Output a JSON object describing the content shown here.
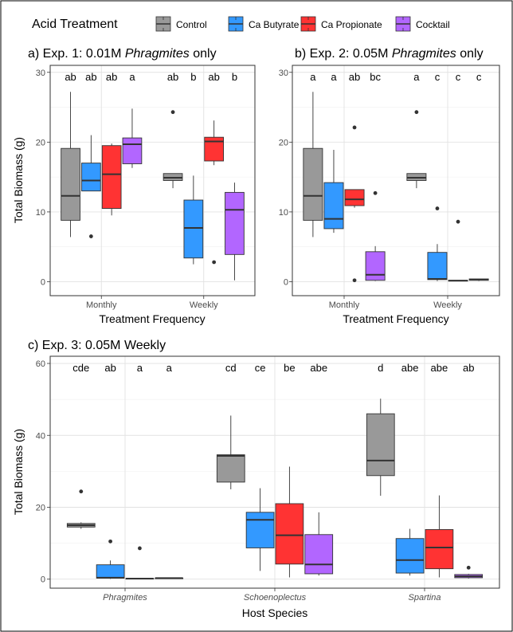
{
  "legend": {
    "title": "Acid Treatment",
    "entries": [
      {
        "name": "Control",
        "color": "#999999"
      },
      {
        "name": "Ca Butyrate",
        "color": "#3399FF"
      },
      {
        "name": "Ca Propionate",
        "color": "#FF3333"
      },
      {
        "name": "Cocktail",
        "color": "#B266FF"
      }
    ]
  },
  "chart_data": [
    {
      "type": "box",
      "title_prefix": "a) Exp. 1: 0.01M ",
      "title_italic": "Phragmites",
      "title_suffix": " only",
      "xlabel": "Treatment Frequency",
      "ylabel": "Total Biomass (g)",
      "ylim": [
        -2,
        31
      ],
      "yticks": [
        0,
        10,
        20,
        30
      ],
      "categories": [
        "Monthly",
        "Weekly"
      ],
      "series_order": [
        "Control",
        "Ca Butyrate",
        "Ca Propionate",
        "Cocktail"
      ],
      "letters": [
        [
          "ab",
          "ab",
          "ab",
          "a"
        ],
        [
          "ab",
          "b",
          "ab",
          "b"
        ]
      ],
      "boxes": [
        [
          {
            "min": 6.4,
            "q1": 8.8,
            "median": 12.3,
            "q3": 19.1,
            "max": 27.2,
            "outliers": []
          },
          {
            "min": 13.0,
            "q1": 13.0,
            "median": 14.5,
            "q3": 17.0,
            "max": 21.0,
            "outliers": [
              6.5
            ]
          },
          {
            "min": 9.5,
            "q1": 10.5,
            "median": 15.4,
            "q3": 19.5,
            "max": 19.8,
            "outliers": []
          },
          {
            "min": 16.3,
            "q1": 16.9,
            "median": 19.7,
            "q3": 20.6,
            "max": 24.8,
            "outliers": []
          }
        ],
        [
          {
            "min": 13.4,
            "q1": 14.5,
            "median": 14.9,
            "q3": 15.5,
            "max": 15.5,
            "outliers": [
              24.3
            ]
          },
          {
            "min": 2.5,
            "q1": 3.4,
            "median": 7.7,
            "q3": 11.7,
            "max": 15.2,
            "outliers": []
          },
          {
            "min": 16.7,
            "q1": 17.3,
            "median": 20.1,
            "q3": 20.7,
            "max": 23.1,
            "outliers": [
              2.8
            ]
          },
          {
            "min": 0.2,
            "q1": 3.9,
            "median": 10.3,
            "q3": 12.8,
            "max": 14.2,
            "outliers": []
          }
        ]
      ]
    },
    {
      "type": "box",
      "title_prefix": "b) Exp. 2: 0.05M ",
      "title_italic": "Phragmites",
      "title_suffix": " only",
      "xlabel": "Treatment Frequency",
      "ylabel": "",
      "ylim": [
        -2,
        31
      ],
      "yticks": [
        0,
        10,
        20,
        30
      ],
      "categories": [
        "Monthly",
        "Weekly"
      ],
      "series_order": [
        "Control",
        "Ca Butyrate",
        "Ca Propionate",
        "Cocktail"
      ],
      "letters": [
        [
          "a",
          "a",
          "ab",
          "bc"
        ],
        [
          "a",
          "c",
          "c",
          "c"
        ]
      ],
      "boxes": [
        [
          {
            "min": 6.4,
            "q1": 8.8,
            "median": 12.3,
            "q3": 19.1,
            "max": 27.2,
            "outliers": []
          },
          {
            "min": 7.0,
            "q1": 7.6,
            "median": 9.0,
            "q3": 14.2,
            "max": 18.9,
            "outliers": []
          },
          {
            "min": 10.6,
            "q1": 10.9,
            "median": 11.8,
            "q3": 13.2,
            "max": 13.2,
            "outliers": [
              22.1,
              0.2
            ]
          },
          {
            "min": 0.1,
            "q1": 0.2,
            "median": 1.0,
            "q3": 4.3,
            "max": 5.1,
            "outliers": [
              12.7
            ]
          }
        ],
        [
          {
            "min": 13.4,
            "q1": 14.5,
            "median": 14.9,
            "q3": 15.5,
            "max": 15.5,
            "outliers": [
              24.3
            ]
          },
          {
            "min": 0.1,
            "q1": 0.3,
            "median": 0.4,
            "q3": 4.2,
            "max": 5.4,
            "outliers": [
              10.5
            ]
          },
          {
            "min": 0.1,
            "q1": 0.1,
            "median": 0.15,
            "q3": 0.2,
            "max": 0.2,
            "outliers": [
              8.6
            ]
          },
          {
            "min": 0.1,
            "q1": 0.2,
            "median": 0.3,
            "q3": 0.4,
            "max": 0.4,
            "outliers": []
          }
        ]
      ]
    },
    {
      "type": "box",
      "title_prefix": "c) Exp. 3: 0.05M Weekly",
      "title_italic": "",
      "title_suffix": "",
      "xlabel": "Host Species",
      "ylabel": "Total Biomass (g)",
      "ylim": [
        -2.5,
        62
      ],
      "yticks": [
        0,
        20,
        40,
        60
      ],
      "categories": [
        "Phragmites",
        "Schoenoplectus",
        "Spartina"
      ],
      "categories_italic": true,
      "series_order": [
        "Control",
        "Ca Butyrate",
        "Ca Propionate",
        "Cocktail"
      ],
      "letters": [
        [
          "cde",
          "ab",
          "a",
          "a"
        ],
        [
          "cd",
          "ce",
          "be",
          "abe"
        ],
        [
          "d",
          "abe",
          "abe",
          "ab"
        ]
      ],
      "boxes": [
        [
          {
            "min": 14.0,
            "q1": 14.5,
            "median": 15.0,
            "q3": 15.5,
            "max": 15.8,
            "outliers": [
              24.4
            ]
          },
          {
            "min": 0.1,
            "q1": 0.3,
            "median": 0.4,
            "q3": 4.0,
            "max": 5.2,
            "outliers": [
              10.5
            ]
          },
          {
            "min": 0.1,
            "q1": 0.1,
            "median": 0.15,
            "q3": 0.2,
            "max": 0.2,
            "outliers": [
              8.6
            ]
          },
          {
            "min": 0.1,
            "q1": 0.2,
            "median": 0.3,
            "q3": 0.3,
            "max": 0.3,
            "outliers": []
          }
        ],
        [
          {
            "min": 25.0,
            "q1": 27.0,
            "median": 34.3,
            "q3": 34.6,
            "max": 45.5,
            "outliers": []
          },
          {
            "min": 2.3,
            "q1": 8.7,
            "median": 16.5,
            "q3": 18.6,
            "max": 25.3,
            "outliers": []
          },
          {
            "min": 0.5,
            "q1": 4.2,
            "median": 12.2,
            "q3": 21.0,
            "max": 31.3,
            "outliers": []
          },
          {
            "min": 1.0,
            "q1": 1.5,
            "median": 4.1,
            "q3": 12.4,
            "max": 18.6,
            "outliers": []
          }
        ],
        [
          {
            "min": 23.2,
            "q1": 28.8,
            "median": 33.0,
            "q3": 46.0,
            "max": 50.2,
            "outliers": []
          },
          {
            "min": 1.0,
            "q1": 1.7,
            "median": 5.3,
            "q3": 11.3,
            "max": 14.0,
            "outliers": []
          },
          {
            "min": 0.5,
            "q1": 2.9,
            "median": 8.8,
            "q3": 13.8,
            "max": 23.3,
            "outliers": []
          },
          {
            "min": 0.2,
            "q1": 0.4,
            "median": 0.8,
            "q3": 1.3,
            "max": 1.5,
            "outliers": [
              3.2
            ]
          }
        ]
      ]
    }
  ]
}
